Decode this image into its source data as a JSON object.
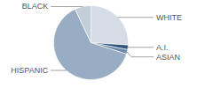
{
  "chart_data": {
    "type": "pie",
    "categories": [
      "WHITE",
      "A.I.",
      "ASIAN",
      "HISPANIC",
      "BLACK"
    ],
    "values": [
      26,
      2,
      2,
      63,
      7
    ],
    "colors": [
      "#d5dce5",
      "#34557a",
      "#6f8bab",
      "#98adc3",
      "#c3ced9"
    ]
  }
}
